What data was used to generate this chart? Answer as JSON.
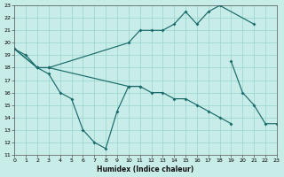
{
  "xlabel": "Humidex (Indice chaleur)",
  "bg_color": "#c8ece8",
  "grid_color": "#96d4cc",
  "line_color": "#1a6b6b",
  "xlim": [
    0,
    23
  ],
  "ylim": [
    11,
    23
  ],
  "xticks": [
    0,
    1,
    2,
    3,
    4,
    5,
    6,
    7,
    8,
    9,
    10,
    11,
    12,
    13,
    14,
    15,
    16,
    17,
    18,
    19,
    20,
    21,
    22,
    23
  ],
  "yticks": [
    11,
    12,
    13,
    14,
    15,
    16,
    17,
    18,
    19,
    20,
    21,
    22,
    23
  ],
  "series": [
    {
      "x": [
        0,
        1,
        2,
        3,
        4,
        5,
        6,
        7,
        8,
        9,
        10,
        11
      ],
      "y": [
        19.5,
        19.0,
        18.0,
        17.5,
        16.0,
        15.5,
        13.0,
        12.0,
        11.5,
        14.5,
        16.5,
        16.5
      ]
    },
    {
      "x": [
        0,
        2,
        3,
        10,
        11,
        12,
        13,
        14,
        15,
        16,
        17,
        18,
        21
      ],
      "y": [
        19.5,
        18.0,
        18.0,
        20.0,
        21.0,
        21.0,
        21.0,
        21.5,
        22.5,
        21.5,
        22.5,
        23.0,
        21.5
      ]
    },
    {
      "x": [
        0,
        2,
        3,
        10,
        11,
        12,
        13,
        14,
        15,
        16,
        17,
        18,
        19
      ],
      "y": [
        19.5,
        18.0,
        18.0,
        16.5,
        16.5,
        16.0,
        16.0,
        15.5,
        15.5,
        15.0,
        14.5,
        14.0,
        13.5
      ]
    },
    {
      "x": [
        19,
        20,
        21,
        22,
        23
      ],
      "y": [
        18.5,
        16.0,
        15.0,
        13.5,
        13.5
      ]
    }
  ]
}
